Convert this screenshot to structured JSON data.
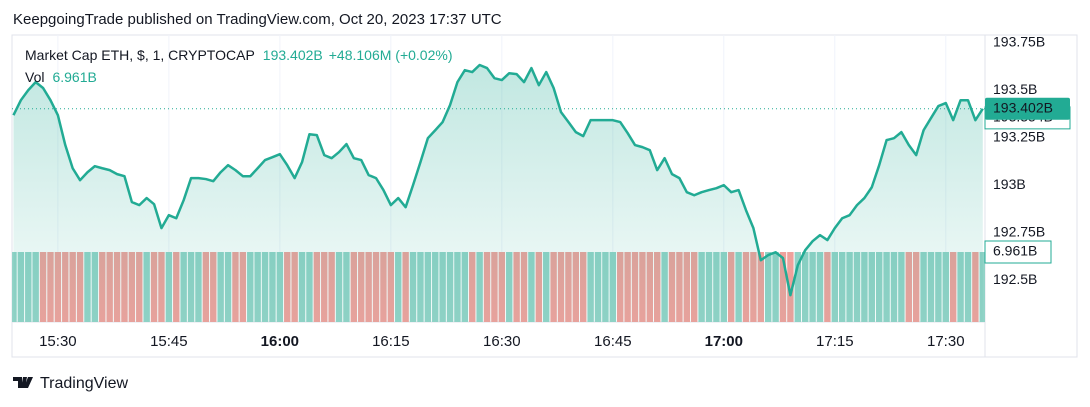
{
  "header": "KeepgoingTrade published on TradingView.com, Oct 20, 2023 17:37 UTC",
  "footer": "TradingView",
  "chart_data": {
    "type": "area",
    "series": [
      {
        "name": "Market Cap ETH, $, 1, CRYPTOCAP",
        "color": "#22ab94",
        "last_label": "193.402B",
        "change_label": "+48.106M (+0.02%)",
        "values": [
          193.368,
          193.447,
          193.5,
          193.542,
          193.511,
          193.447,
          193.368,
          193.211,
          193.089,
          193.026,
          193.068,
          193.1,
          193.089,
          193.079,
          193.058,
          193.047,
          192.911,
          192.895,
          192.932,
          192.9,
          192.774,
          192.842,
          192.826,
          192.921,
          193.037,
          193.037,
          193.032,
          193.021,
          193.068,
          193.105,
          193.079,
          193.047,
          193.047,
          193.089,
          193.132,
          193.147,
          193.163,
          193.105,
          193.037,
          193.121,
          193.268,
          193.263,
          193.158,
          193.142,
          193.174,
          193.216,
          193.142,
          193.132,
          193.053,
          193.037,
          192.974,
          192.895,
          192.932,
          192.884,
          193.0,
          193.121,
          193.247,
          193.289,
          193.332,
          193.421,
          193.542,
          193.605,
          193.595,
          193.632,
          193.616,
          193.563,
          193.553,
          193.589,
          193.584,
          193.542,
          193.616,
          193.526,
          193.595,
          193.511,
          193.384,
          193.332,
          193.279,
          193.258,
          193.342,
          193.342,
          193.342,
          193.342,
          193.332,
          193.274,
          193.211,
          193.2,
          193.184,
          193.079,
          193.142,
          193.058,
          193.037,
          192.963,
          192.947,
          192.963,
          192.974,
          192.984,
          193.0,
          192.963,
          192.974,
          192.868,
          192.774,
          192.605,
          192.632,
          192.647,
          192.616,
          192.421,
          192.579,
          192.658,
          192.705,
          192.737,
          192.711,
          192.774,
          192.826,
          192.842,
          192.895,
          192.932,
          192.989,
          193.105,
          193.237,
          193.247,
          193.279,
          193.211,
          193.158,
          193.289,
          193.353,
          193.416,
          193.432,
          193.342,
          193.447,
          193.447,
          193.342,
          193.402
        ]
      }
    ],
    "x": [
      924,
      925,
      926,
      927,
      928,
      929,
      930,
      931,
      932,
      933,
      934,
      935,
      936,
      937,
      938,
      939,
      940,
      941,
      942,
      943,
      944,
      945,
      946,
      947,
      948,
      949,
      950,
      951,
      952,
      953,
      954,
      955,
      956,
      957,
      958,
      959,
      960,
      961,
      962,
      963,
      964,
      965,
      966,
      967,
      968,
      969,
      970,
      971,
      972,
      973,
      974,
      975,
      976,
      977,
      978,
      979,
      980,
      981,
      982,
      983,
      984,
      985,
      986,
      987,
      988,
      989,
      990,
      991,
      992,
      993,
      994,
      995,
      996,
      997,
      998,
      999,
      1000,
      1001,
      1002,
      1003,
      1004,
      1005,
      1006,
      1007,
      1008,
      1009,
      1010,
      1011,
      1012,
      1013,
      1014,
      1015,
      1016,
      1017,
      1018,
      1019,
      1020,
      1021,
      1022,
      1023,
      1024,
      1025,
      1026,
      1027,
      1028,
      1029,
      1030,
      1031,
      1032,
      1033,
      1034,
      1035,
      1036,
      1037,
      1038,
      1039,
      1040,
      1041,
      1042,
      1043,
      1044,
      1045,
      1046,
      1047,
      1048,
      1049,
      1050,
      1051,
      1052,
      1053,
      1054,
      1055
    ],
    "xlim": [
      923.8,
      1055.3
    ],
    "xticks": [
      {
        "value": 930,
        "label": "15:30"
      },
      {
        "value": 945,
        "label": "15:45"
      },
      {
        "value": 960,
        "label": "16:00"
      },
      {
        "value": 975,
        "label": "16:15"
      },
      {
        "value": 990,
        "label": "16:30"
      },
      {
        "value": 1005,
        "label": "16:45"
      },
      {
        "value": 1020,
        "label": "17:00"
      },
      {
        "value": 1035,
        "label": "17:15"
      },
      {
        "value": 1050,
        "label": "17:30"
      }
    ],
    "ylim": [
      192.28,
      193.79
    ],
    "yticks": [
      {
        "value": 192.5,
        "label": "192.5B"
      },
      {
        "value": 192.75,
        "label": "192.75B"
      },
      {
        "value": 193,
        "label": "193B"
      },
      {
        "value": 193.25,
        "label": "193.25B"
      },
      {
        "value": 193.5,
        "label": "193.5B"
      },
      {
        "value": 193.75,
        "label": "193.75B"
      }
    ],
    "reference_line": {
      "value": 193.354,
      "label": "193.354B"
    },
    "grid": true,
    "volume": {
      "name": "Vol",
      "last_label": "6.961B",
      "up_color": "#92d3c7",
      "down_color": "#efa19c",
      "ylim": [
        0,
        6.961
      ],
      "values": [
        6.961,
        6.961,
        6.961,
        6.961,
        6.961,
        6.961,
        6.961,
        6.961,
        6.961,
        6.961,
        6.961,
        6.961,
        6.961,
        6.961,
        6.961,
        6.961,
        6.961,
        6.961,
        6.961,
        6.961,
        6.961,
        6.961,
        6.961,
        6.961,
        6.961,
        6.961,
        6.961,
        6.961,
        6.961,
        6.961,
        6.961,
        6.961,
        6.961,
        6.961,
        6.961,
        6.961,
        6.961,
        6.961,
        6.961,
        6.961,
        6.961,
        6.961,
        6.961,
        6.961,
        6.961,
        6.961,
        6.961,
        6.961,
        6.961,
        6.961,
        6.961,
        6.961,
        6.961,
        6.961,
        6.961,
        6.961,
        6.961,
        6.961,
        6.961,
        6.961,
        6.961,
        6.961,
        6.961,
        6.961,
        6.961,
        6.961,
        6.961,
        6.961,
        6.961,
        6.961,
        6.961,
        6.961,
        6.961,
        6.961,
        6.961,
        6.961,
        6.961,
        6.961,
        6.961,
        6.961,
        6.961,
        6.961,
        6.961,
        6.961,
        6.961,
        6.961,
        6.961,
        6.961,
        6.961,
        6.961,
        6.961,
        6.961,
        6.961,
        6.961,
        6.961,
        6.961,
        6.961,
        6.961,
        6.961,
        6.961,
        6.961,
        6.961,
        6.961,
        6.961,
        6.961,
        6.961,
        6.961,
        6.961,
        6.961,
        6.961,
        6.961,
        6.961,
        6.961,
        6.961,
        6.961,
        6.961,
        6.961,
        6.961,
        6.961,
        6.961,
        6.961,
        6.961,
        6.961,
        6.961,
        6.961,
        6.961,
        6.961,
        6.961,
        6.961,
        6.961,
        6.961,
        6.961
      ]
    }
  }
}
